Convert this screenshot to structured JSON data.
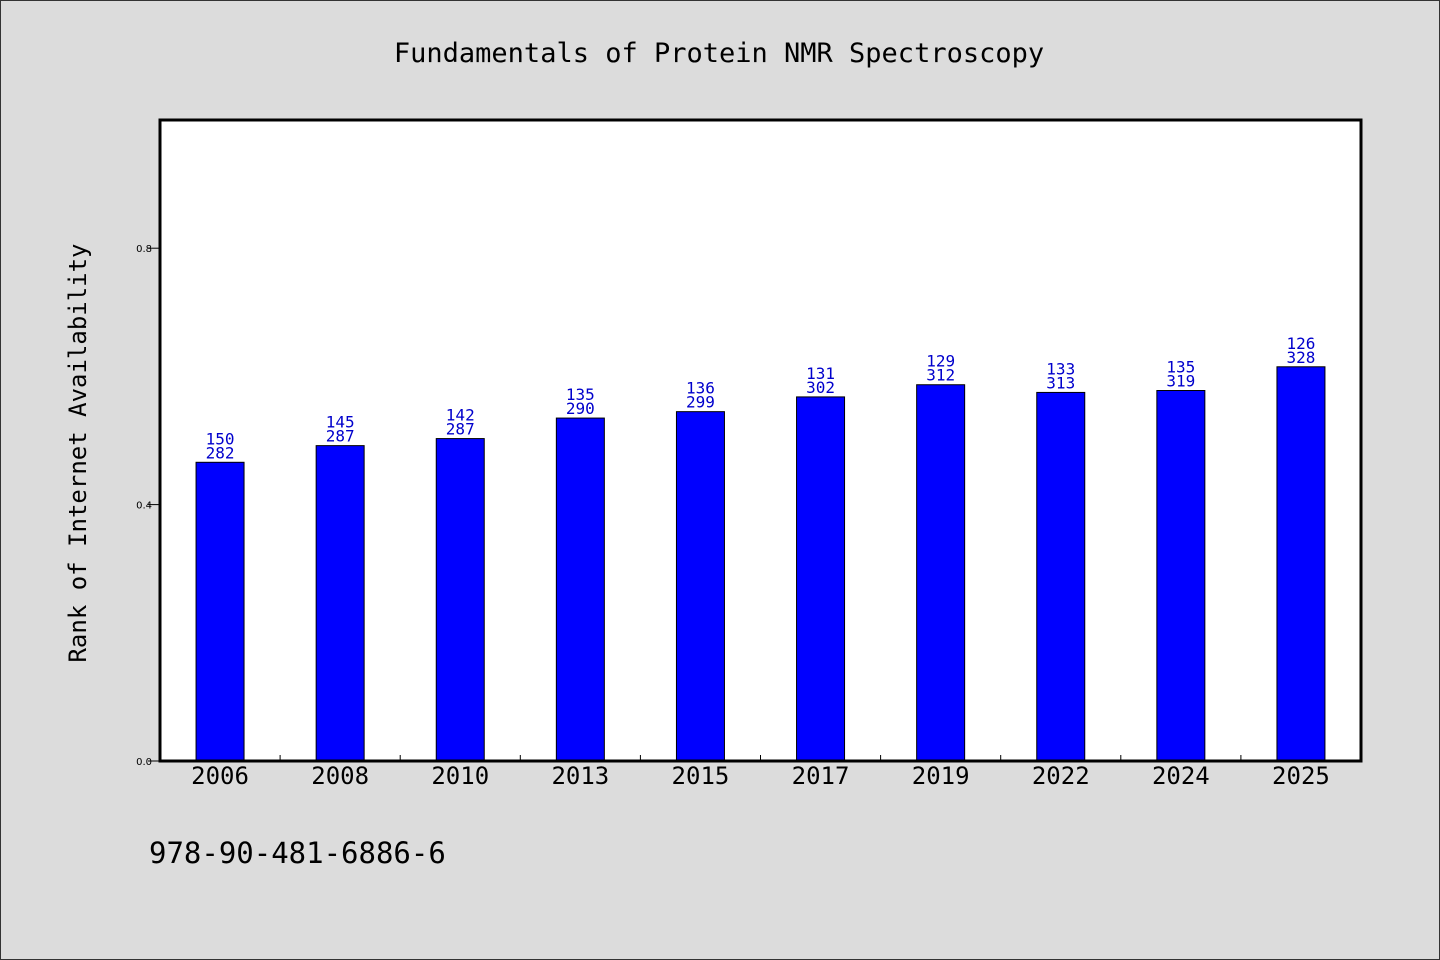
{
  "chart_data": {
    "type": "bar",
    "title": "Fundamentals of Protein NMR Spectroscopy",
    "xlabel": "",
    "ylabel": "Rank of Internet Availability",
    "categories": [
      "2006",
      "2008",
      "2010",
      "2013",
      "2015",
      "2017",
      "2019",
      "2022",
      "2024",
      "2025"
    ],
    "values": [
      0.466,
      0.492,
      0.503,
      0.535,
      0.545,
      0.568,
      0.587,
      0.575,
      0.578,
      0.615
    ],
    "upper_labels": [
      "150",
      "145",
      "142",
      "135",
      "136",
      "131",
      "129",
      "133",
      "135",
      "126"
    ],
    "lower_labels": [
      "282",
      "287",
      "287",
      "290",
      "299",
      "302",
      "312",
      "313",
      "319",
      "328"
    ],
    "ylim": [
      0,
      1.0
    ],
    "yticks": [
      0.0,
      0.4,
      0.8
    ],
    "ytick_labels": [
      "0.0",
      "0.4",
      "0.8"
    ],
    "grid": false,
    "legend": "none",
    "colors": {
      "bar": "#0000ff",
      "bar_label": "#0000cc",
      "background": "#dcdcdc",
      "plot_background": "#ffffff"
    }
  },
  "footer": {
    "isbn": "978-90-481-6886-6"
  }
}
